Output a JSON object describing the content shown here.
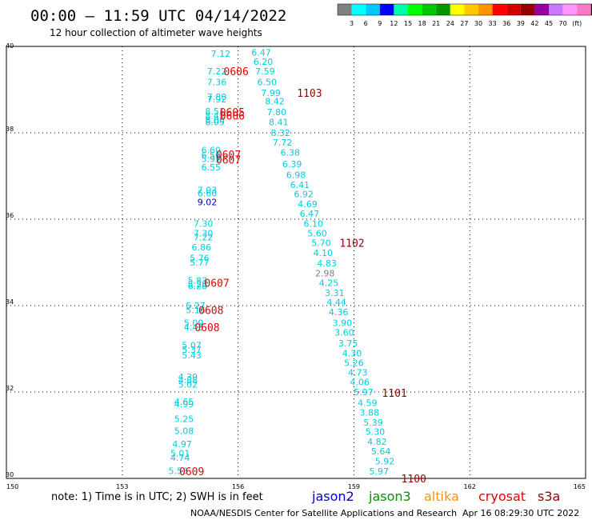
{
  "header": {
    "title": "00:00 – 11:59 UTC 04/14/2022",
    "subtitle": "12 hour collection of altimeter wave heights"
  },
  "color_scale": {
    "colors": [
      "#808080",
      "#00ffff",
      "#00c8ff",
      "#0000ff",
      "#00ffaa",
      "#00ff00",
      "#00c800",
      "#009600",
      "#ffff00",
      "#ffc800",
      "#ff9600",
      "#ff0000",
      "#d20000",
      "#960000",
      "#9600a0",
      "#c878ff",
      "#ff96ff",
      "#ff78c8",
      "#000000"
    ],
    "labels": [
      "3",
      "6",
      "9",
      "12",
      "15",
      "18",
      "21",
      "24",
      "27",
      "30",
      "33",
      "36",
      "39",
      "42",
      "45",
      "70",
      "(ft)"
    ]
  },
  "footer": {
    "note": "note: 1) Time is in UTC; 2) SWH is in feet",
    "satellites": [
      {
        "name": "jason2",
        "color": "#0000cc"
      },
      {
        "name": "jason3",
        "color": "#009600"
      },
      {
        "name": "altika",
        "color": "#ff9600"
      },
      {
        "name": "cryosat",
        "color": "#e60000"
      },
      {
        "name": "s3a",
        "color": "#960000"
      }
    ],
    "credit": "NOAA/NESDIS Center for Satellite Applications and Research",
    "generated": "Apr 16 08:29:30 UTC 2022"
  },
  "chart_data": {
    "type": "scatter",
    "xlim": [
      150,
      165
    ],
    "ylim": [
      30,
      40
    ],
    "x_ticks": [
      "150",
      "153",
      "156",
      "159",
      "162",
      "165"
    ],
    "y_ticks": [
      "30",
      "32",
      "34",
      "36",
      "38",
      "40"
    ],
    "grid": true,
    "points": [
      {
        "x": 155.55,
        "y": 39.83,
        "v": "7.12",
        "c": "#00ccdd"
      },
      {
        "x": 156.6,
        "y": 39.86,
        "v": "6.47",
        "c": "#00ccdd"
      },
      {
        "x": 156.65,
        "y": 39.65,
        "v": "6.20",
        "c": "#00ccdd"
      },
      {
        "x": 155.45,
        "y": 39.43,
        "v": "7.22",
        "c": "#00ccdd"
      },
      {
        "x": 156.7,
        "y": 39.43,
        "v": "7.59",
        "c": "#00ccdd"
      },
      {
        "x": 155.45,
        "y": 39.18,
        "v": "7.36",
        "c": "#00ccdd"
      },
      {
        "x": 156.75,
        "y": 39.18,
        "v": "6.50",
        "c": "#00ccdd"
      },
      {
        "x": 156.85,
        "y": 38.93,
        "v": "7.99",
        "c": "#00ccdd"
      },
      {
        "x": 155.45,
        "y": 38.83,
        "v": "7.80",
        "c": "#00ccdd"
      },
      {
        "x": 155.45,
        "y": 38.78,
        "v": "7.92",
        "c": "#00ccdd"
      },
      {
        "x": 156.95,
        "y": 38.73,
        "v": "8.42",
        "c": "#00ccdd"
      },
      {
        "x": 155.4,
        "y": 38.5,
        "v": "8.51",
        "c": "#00ccdd"
      },
      {
        "x": 157.0,
        "y": 38.48,
        "v": "7.80",
        "c": "#00ccdd"
      },
      {
        "x": 155.4,
        "y": 38.4,
        "v": "8.41",
        "c": "#00ccdd"
      },
      {
        "x": 155.4,
        "y": 38.3,
        "v": "8.06",
        "c": "#00ccdd"
      },
      {
        "x": 155.4,
        "y": 38.25,
        "v": "8.05",
        "c": "#00ccdd"
      },
      {
        "x": 157.05,
        "y": 38.25,
        "v": "8.41",
        "c": "#00ccdd"
      },
      {
        "x": 157.1,
        "y": 38.0,
        "v": "8.32",
        "c": "#00ccdd"
      },
      {
        "x": 157.15,
        "y": 37.78,
        "v": "7.72",
        "c": "#00ccdd"
      },
      {
        "x": 155.3,
        "y": 37.6,
        "v": "6.60",
        "c": "#00ccdd"
      },
      {
        "x": 157.35,
        "y": 37.55,
        "v": "6.38",
        "c": "#00ccdd"
      },
      {
        "x": 155.3,
        "y": 37.48,
        "v": "6.56",
        "c": "#00ccdd"
      },
      {
        "x": 155.3,
        "y": 37.4,
        "v": "5.91",
        "c": "#00ccdd"
      },
      {
        "x": 157.4,
        "y": 37.28,
        "v": "6.39",
        "c": "#00ccdd"
      },
      {
        "x": 155.3,
        "y": 37.2,
        "v": "6.55",
        "c": "#00ccdd"
      },
      {
        "x": 157.5,
        "y": 37.03,
        "v": "6.98",
        "c": "#00ccdd"
      },
      {
        "x": 157.6,
        "y": 36.8,
        "v": "6.41",
        "c": "#00ccdd"
      },
      {
        "x": 155.2,
        "y": 36.68,
        "v": "7.03",
        "c": "#00ccdd"
      },
      {
        "x": 155.2,
        "y": 36.6,
        "v": "6.60",
        "c": "#00ccdd"
      },
      {
        "x": 157.7,
        "y": 36.58,
        "v": "6.92",
        "c": "#00ccdd"
      },
      {
        "x": 155.2,
        "y": 36.4,
        "v": "9.02",
        "c": "#0000cc"
      },
      {
        "x": 157.8,
        "y": 36.35,
        "v": "4.69",
        "c": "#00ccdd"
      },
      {
        "x": 157.85,
        "y": 36.13,
        "v": "6.47",
        "c": "#00ccdd"
      },
      {
        "x": 155.1,
        "y": 35.9,
        "v": "7.30",
        "c": "#00ccdd"
      },
      {
        "x": 157.95,
        "y": 35.9,
        "v": "6.10",
        "c": "#00ccdd"
      },
      {
        "x": 155.1,
        "y": 35.68,
        "v": "7.30",
        "c": "#00ccdd"
      },
      {
        "x": 158.05,
        "y": 35.68,
        "v": "5.60",
        "c": "#00ccdd"
      },
      {
        "x": 155.1,
        "y": 35.58,
        "v": "7.22",
        "c": "#00ccdd"
      },
      {
        "x": 158.15,
        "y": 35.45,
        "v": "5.70",
        "c": "#00ccdd"
      },
      {
        "x": 155.05,
        "y": 35.35,
        "v": "6.86",
        "c": "#00ccdd"
      },
      {
        "x": 158.2,
        "y": 35.22,
        "v": "4.10",
        "c": "#00ccdd"
      },
      {
        "x": 155.0,
        "y": 35.1,
        "v": "5.76",
        "c": "#00ccdd"
      },
      {
        "x": 155.0,
        "y": 35.0,
        "v": "5.77",
        "c": "#00ccdd"
      },
      {
        "x": 158.3,
        "y": 34.98,
        "v": "4.83",
        "c": "#00ccdd"
      },
      {
        "x": 158.25,
        "y": 34.75,
        "v": "2.98",
        "c": "#808080"
      },
      {
        "x": 154.95,
        "y": 34.58,
        "v": "5.83",
        "c": "#00ccdd"
      },
      {
        "x": 158.35,
        "y": 34.53,
        "v": "4.25",
        "c": "#00ccdd"
      },
      {
        "x": 154.95,
        "y": 34.5,
        "v": "5.28",
        "c": "#00ccdd"
      },
      {
        "x": 154.95,
        "y": 34.45,
        "v": "6.28",
        "c": "#00ccdd"
      },
      {
        "x": 158.5,
        "y": 34.3,
        "v": "3.31",
        "c": "#00ccdd"
      },
      {
        "x": 158.55,
        "y": 34.08,
        "v": "4.44",
        "c": "#00ccdd"
      },
      {
        "x": 154.9,
        "y": 34.0,
        "v": "5.27",
        "c": "#00ccdd"
      },
      {
        "x": 154.9,
        "y": 33.9,
        "v": "5.16",
        "c": "#00ccdd"
      },
      {
        "x": 158.6,
        "y": 33.85,
        "v": "4.36",
        "c": "#00ccdd"
      },
      {
        "x": 154.85,
        "y": 33.6,
        "v": "5.09",
        "c": "#00ccdd"
      },
      {
        "x": 158.7,
        "y": 33.6,
        "v": "3.90",
        "c": "#00ccdd"
      },
      {
        "x": 154.85,
        "y": 33.5,
        "v": "4.43",
        "c": "#00ccdd"
      },
      {
        "x": 158.75,
        "y": 33.38,
        "v": "3.60",
        "c": "#00ccdd"
      },
      {
        "x": 154.8,
        "y": 33.08,
        "v": "5.07",
        "c": "#00ccdd"
      },
      {
        "x": 158.85,
        "y": 33.13,
        "v": "3.75",
        "c": "#00ccdd"
      },
      {
        "x": 154.8,
        "y": 32.98,
        "v": "5.37",
        "c": "#00ccdd"
      },
      {
        "x": 158.95,
        "y": 32.9,
        "v": "4.30",
        "c": "#00ccdd"
      },
      {
        "x": 154.8,
        "y": 32.85,
        "v": "5.43",
        "c": "#00ccdd"
      },
      {
        "x": 159.0,
        "y": 32.68,
        "v": "5.26",
        "c": "#00ccdd"
      },
      {
        "x": 159.1,
        "y": 32.45,
        "v": "4.73",
        "c": "#00ccdd"
      },
      {
        "x": 154.7,
        "y": 32.35,
        "v": "4.39",
        "c": "#00ccdd"
      },
      {
        "x": 154.7,
        "y": 32.28,
        "v": "4.88",
        "c": "#00ccdd"
      },
      {
        "x": 159.15,
        "y": 32.23,
        "v": "4.06",
        "c": "#00ccdd"
      },
      {
        "x": 154.7,
        "y": 32.18,
        "v": "5.02",
        "c": "#00ccdd"
      },
      {
        "x": 159.25,
        "y": 32.0,
        "v": "5.97",
        "c": "#00ccdd"
      },
      {
        "x": 154.6,
        "y": 31.78,
        "v": "4.65",
        "c": "#00ccdd"
      },
      {
        "x": 159.35,
        "y": 31.75,
        "v": "4.59",
        "c": "#00ccdd"
      },
      {
        "x": 154.6,
        "y": 31.72,
        "v": "4.99",
        "c": "#00ccdd"
      },
      {
        "x": 159.4,
        "y": 31.53,
        "v": "3.88",
        "c": "#00ccdd"
      },
      {
        "x": 154.6,
        "y": 31.38,
        "v": "5.25",
        "c": "#00ccdd"
      },
      {
        "x": 159.5,
        "y": 31.3,
        "v": "5.39",
        "c": "#00ccdd"
      },
      {
        "x": 154.6,
        "y": 31.1,
        "v": "5.08",
        "c": "#00ccdd"
      },
      {
        "x": 159.55,
        "y": 31.08,
        "v": "5.30",
        "c": "#00ccdd"
      },
      {
        "x": 154.55,
        "y": 30.8,
        "v": "4.97",
        "c": "#00ccdd"
      },
      {
        "x": 159.6,
        "y": 30.85,
        "v": "4.82",
        "c": "#00ccdd"
      },
      {
        "x": 154.5,
        "y": 30.58,
        "v": "5.01",
        "c": "#00ccdd"
      },
      {
        "x": 159.7,
        "y": 30.63,
        "v": "5.64",
        "c": "#00ccdd"
      },
      {
        "x": 154.5,
        "y": 30.48,
        "v": "4.74",
        "c": "#00ccdd"
      },
      {
        "x": 159.8,
        "y": 30.4,
        "v": "5.92",
        "c": "#00ccdd"
      },
      {
        "x": 154.45,
        "y": 30.18,
        "v": "5.53",
        "c": "#00ccdd"
      },
      {
        "x": 159.65,
        "y": 30.17,
        "v": "5.97",
        "c": "#00ccdd"
      }
    ],
    "passes": [
      {
        "x": 155.95,
        "y": 39.43,
        "v": "0606",
        "c": "#e60000"
      },
      {
        "x": 157.85,
        "y": 38.93,
        "v": "1103",
        "c": "#960000"
      },
      {
        "x": 155.85,
        "y": 38.48,
        "v": "0605",
        "c": "#e60000"
      },
      {
        "x": 155.85,
        "y": 38.4,
        "v": "0606",
        "c": "#e60000"
      },
      {
        "x": 155.75,
        "y": 37.5,
        "v": "0607",
        "c": "#e60000"
      },
      {
        "x": 155.75,
        "y": 37.38,
        "v": "0607",
        "c": "#e60000"
      },
      {
        "x": 158.95,
        "y": 35.45,
        "v": "1102",
        "c": "#960000"
      },
      {
        "x": 155.45,
        "y": 34.53,
        "v": "0607",
        "c": "#e60000"
      },
      {
        "x": 155.3,
        "y": 33.9,
        "v": "0608",
        "c": "#e60000"
      },
      {
        "x": 155.2,
        "y": 33.5,
        "v": "0608",
        "c": "#e60000"
      },
      {
        "x": 160.05,
        "y": 31.98,
        "v": "1101",
        "c": "#960000"
      },
      {
        "x": 154.8,
        "y": 30.17,
        "v": "0609",
        "c": "#e60000"
      },
      {
        "x": 160.55,
        "y": 30.0,
        "v": "1100",
        "c": "#960000"
      }
    ]
  }
}
